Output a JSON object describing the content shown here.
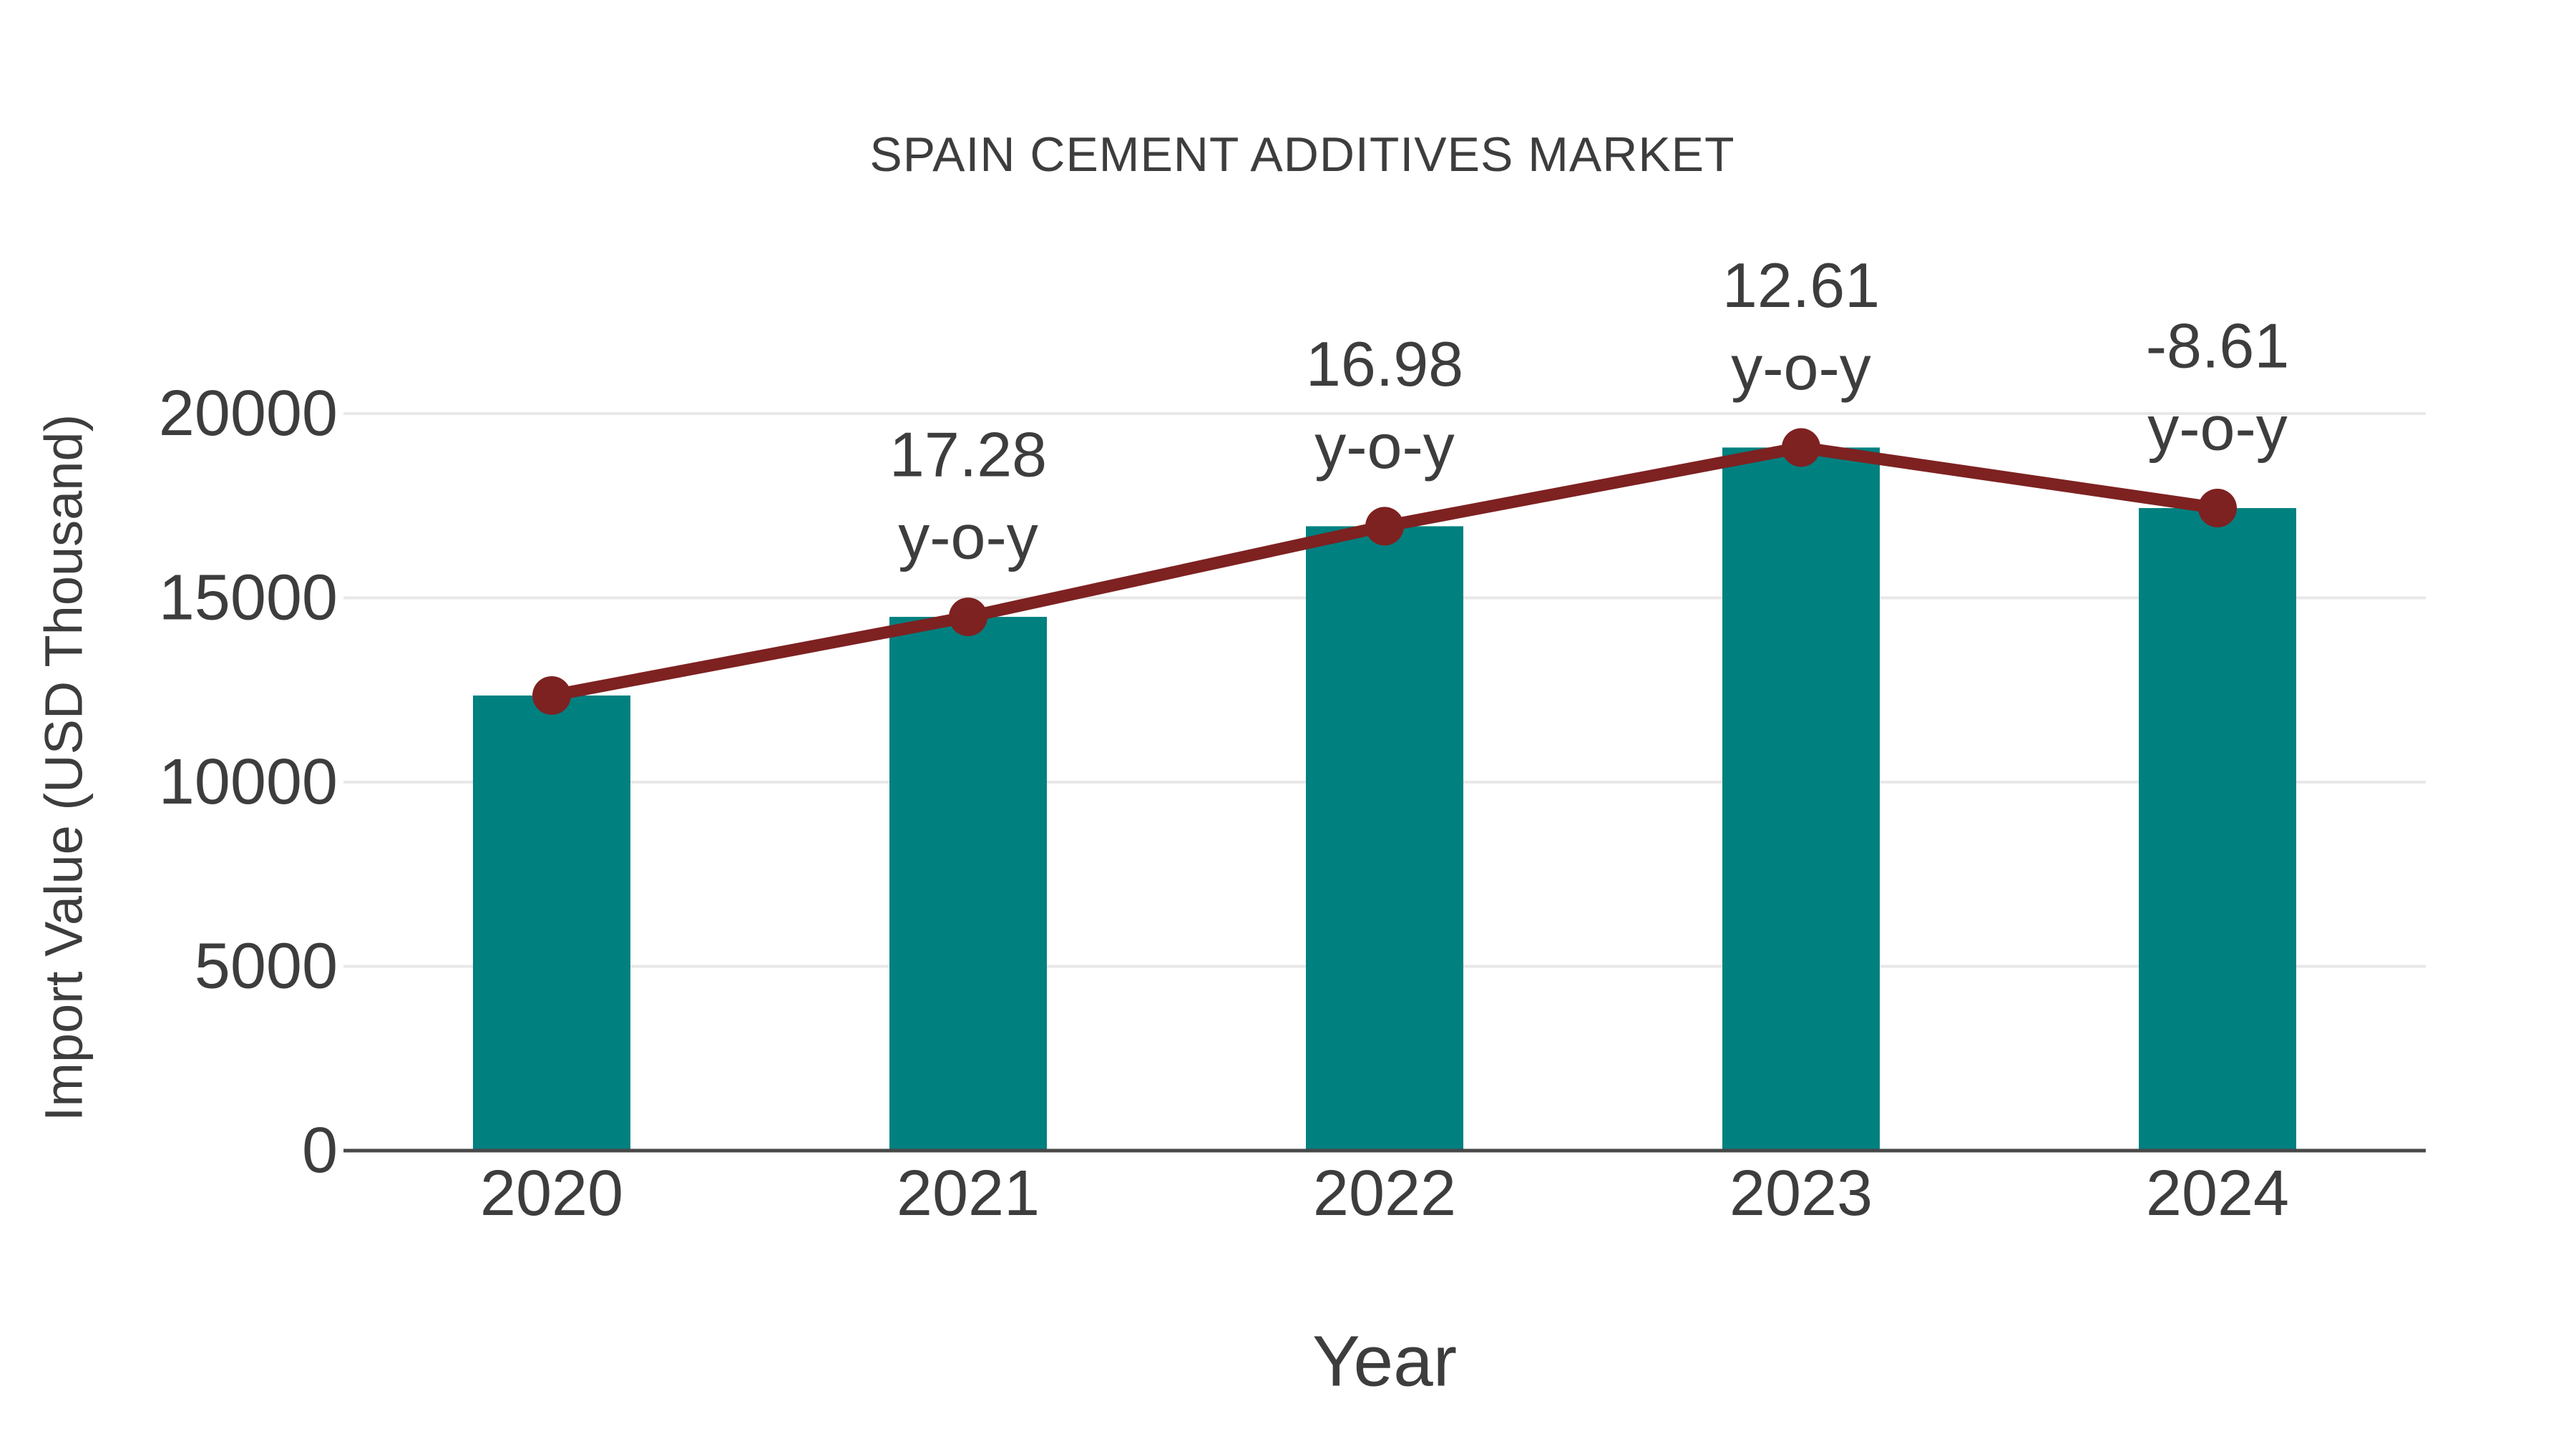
{
  "chart_data": {
    "type": "bar",
    "title": "SPAIN CEMENT ADDITIVES MARKET",
    "xlabel": "Year",
    "ylabel": "Import Value (USD Thousand)",
    "categories": [
      "2020",
      "2021",
      "2022",
      "2023",
      "2024"
    ],
    "series": [
      {
        "name": "Import Value (USD Thousand)",
        "type": "bar",
        "color": "#018080",
        "values": [
          12350,
          14484,
          16943,
          19079,
          17436
        ]
      },
      {
        "name": "y-o-y",
        "type": "line",
        "color": "#7E2121",
        "values": [
          12350,
          14484,
          16943,
          19079,
          17436
        ]
      }
    ],
    "annotations": [
      {
        "category": "2021",
        "value_text": "17.28",
        "unit_text": "y-o-y"
      },
      {
        "category": "2022",
        "value_text": "16.98",
        "unit_text": "y-o-y"
      },
      {
        "category": "2023",
        "value_text": "12.61",
        "unit_text": "y-o-y"
      },
      {
        "category": "2024",
        "value_text": "-8.61",
        "unit_text": "y-o-y"
      }
    ],
    "yticks": [
      0,
      5000,
      10000,
      15000,
      20000
    ],
    "ylim": [
      0,
      20000
    ],
    "grid": true,
    "legend": "none",
    "colors": {
      "bar": "#018080",
      "line": "#7E2121",
      "text": "#3D3D3D",
      "grid": "#E8E8E8",
      "axis": "#484848",
      "background": "#FFFFFF"
    }
  }
}
